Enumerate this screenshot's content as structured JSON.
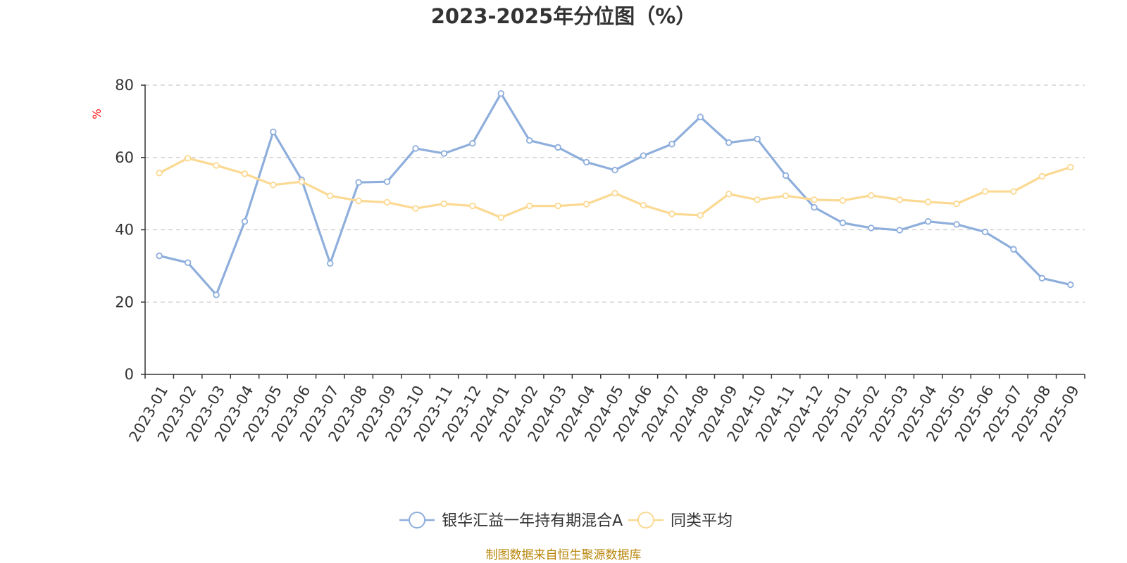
{
  "chart_data": {
    "type": "line",
    "title": "2023-2025年分位图（%）",
    "ylabel": "%",
    "ylim": [
      0,
      80
    ],
    "yticks": [
      0,
      20,
      40,
      60,
      80
    ],
    "grid": true,
    "legend_position": "bottom-center",
    "categories": [
      "2023-01",
      "2023-02",
      "2023-03",
      "2023-04",
      "2023-05",
      "2023-06",
      "2023-07",
      "2023-08",
      "2023-09",
      "2023-10",
      "2023-11",
      "2023-12",
      "2024-01",
      "2024-02",
      "2024-03",
      "2024-04",
      "2024-05",
      "2024-06",
      "2024-07",
      "2024-08",
      "2024-09",
      "2024-10",
      "2024-11",
      "2024-12",
      "2025-01",
      "2025-02",
      "2025-03",
      "2025-04",
      "2025-05",
      "2025-06",
      "2025-07",
      "2025-08",
      "2025-09"
    ],
    "series": [
      {
        "name": "银华汇益一年持有期混合A",
        "color": "#8eaedc",
        "values": [
          32.8,
          30.9,
          22.0,
          42.3,
          67.1,
          53.8,
          30.7,
          53.1,
          53.3,
          62.5,
          61.1,
          63.9,
          77.7,
          64.7,
          62.8,
          58.7,
          56.5,
          60.5,
          63.7,
          71.2,
          64.1,
          65.1,
          55.0,
          46.2,
          41.9,
          40.5,
          39.9,
          42.3,
          41.5,
          39.4,
          34.6,
          26.6,
          24.8
        ]
      },
      {
        "name": "同类平均",
        "color": "#fbd992",
        "values": [
          55.7,
          59.8,
          57.8,
          55.5,
          52.4,
          53.3,
          49.4,
          48.0,
          47.6,
          45.9,
          47.2,
          46.6,
          43.4,
          46.6,
          46.6,
          47.1,
          50.1,
          46.8,
          44.4,
          44.0,
          49.9,
          48.3,
          49.4,
          48.3,
          48.1,
          49.5,
          48.3,
          47.7,
          47.2,
          50.6,
          50.6,
          54.8,
          57.3
        ]
      }
    ]
  },
  "source_text": "制图数据来自恒生聚源数据库",
  "colors": {
    "axis": "#333333",
    "grid": "#cccccc",
    "ylabel": "#ff0000",
    "source": "#b8860b"
  }
}
